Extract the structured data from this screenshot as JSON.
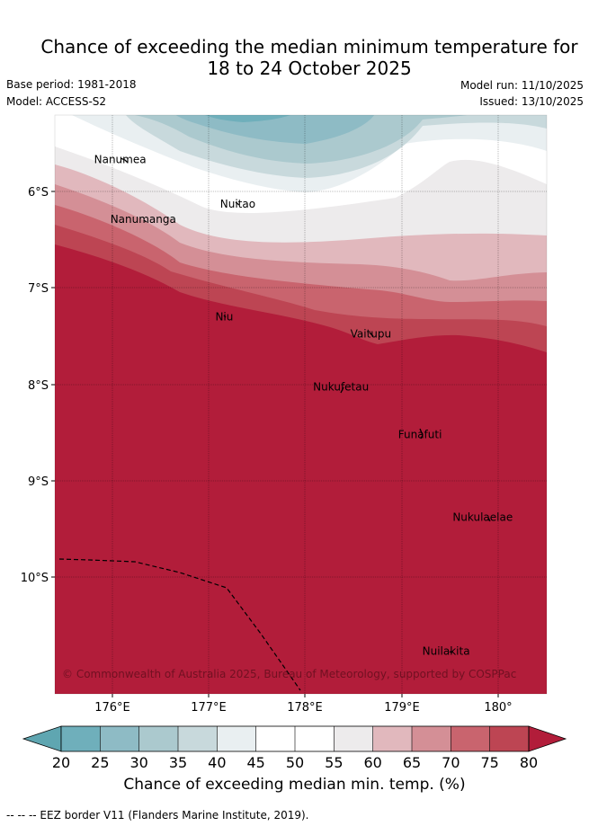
{
  "title": {
    "line1": "Chance of exceeding the median minimum temperature for",
    "line2": "18 to 24 October 2025"
  },
  "meta": {
    "base_period": "Base period: 1981-2018",
    "model": "Model: ACCESS-S2",
    "model_run": "Model run: 11/10/2025",
    "issued": "Issued: 13/10/2025"
  },
  "map": {
    "lat_ticks": [
      "6°S",
      "7°S",
      "8°S",
      "9°S",
      "10°S"
    ],
    "lon_ticks": [
      "176°E",
      "177°E",
      "178°E",
      "179°E",
      "180°"
    ],
    "places": [
      {
        "name": "Nanumea",
        "lon": 176.08,
        "lat": -5.67
      },
      {
        "name": "Nuitao",
        "lon": 177.3,
        "lat": -6.13
      },
      {
        "name": "Nanumanga",
        "lon": 176.32,
        "lat": -6.29
      },
      {
        "name": "Niu",
        "lon": 177.16,
        "lat": -7.3
      },
      {
        "name": "Vaitupu",
        "lon": 178.68,
        "lat": -7.48
      },
      {
        "name": "Nukufetau",
        "lon": 178.37,
        "lat": -8.03
      },
      {
        "name": "Funafuti",
        "lon": 179.19,
        "lat": -8.52
      },
      {
        "name": "Nukulaelae",
        "lon": 179.84,
        "lat": -9.38
      },
      {
        "name": "Nuilakita",
        "lon": 179.46,
        "lat": -10.77
      }
    ],
    "copyright": "© Commonwealth of Australia 2025, Bureau of Meteorology, supported by COSPPac"
  },
  "colorbar": {
    "ticks": [
      "20",
      "25",
      "30",
      "35",
      "40",
      "45",
      "50",
      "55",
      "60",
      "65",
      "70",
      "75",
      "80"
    ],
    "colors": [
      "#5fa6b1",
      "#6fafbb",
      "#8ebbc5",
      "#abc9ce",
      "#c8d9dc",
      "#e9eff1",
      "#ffffff",
      "#ffffff",
      "#edebec",
      "#e1b8bd",
      "#d48f96",
      "#c9646e",
      "#bd4553",
      "#b21d3a"
    ],
    "label": "Chance of exceeding median min. temp. (%)"
  },
  "footnote": "--  --  -- EEZ border V11 (Flanders Marine Institute, 2019)."
}
